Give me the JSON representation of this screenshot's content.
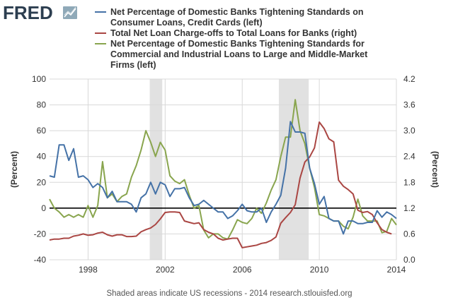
{
  "logo": {
    "text": "FRED",
    "icon": "trend-chart-icon"
  },
  "footer": "Shaded areas indicate US recessions - 2014 research.stlouisfed.org",
  "colors": {
    "series1": "#4572a7",
    "series2": "#aa4643",
    "series3": "#89a54e",
    "recession": "#e1e1e1",
    "grid": "#d8d8d8",
    "zero_line": "#000000",
    "logo": "#2c3e50"
  },
  "chart_data": {
    "type": "line",
    "xlim": [
      1996.0,
      2014.0
    ],
    "x_ticks": [
      1998,
      2002,
      2006,
      2010,
      2014
    ],
    "x_tick_labels": [
      "1998",
      "2002",
      "2006",
      "2010",
      "2014"
    ],
    "y_left": {
      "label": "(Percent)",
      "ylim": [
        -40,
        100
      ],
      "ticks": [
        -40,
        -20,
        0,
        20,
        40,
        60,
        80,
        100
      ],
      "tick_labels": [
        "-40",
        "-20",
        "0",
        "20",
        "40",
        "60",
        "80",
        "100"
      ]
    },
    "y_right": {
      "label": "(Percent)",
      "ylim": [
        0.0,
        4.2
      ],
      "ticks": [
        0.0,
        0.6,
        1.2,
        1.8,
        2.4,
        3.0,
        3.6,
        4.2
      ],
      "tick_labels": [
        "0.0",
        "0.6",
        "1.2",
        "1.8",
        "2.4",
        "3.0",
        "3.6",
        "4.2"
      ]
    },
    "grid": true,
    "zero_line": 0,
    "recessions": [
      [
        2001.2,
        2001.85
      ],
      [
        2007.9,
        2009.45
      ]
    ],
    "series": [
      {
        "name": "Net Percentage of Domestic Banks Tightening Standards on Consumer Loans, Credit Cards (left)",
        "axis": "left",
        "color": "#4572a7",
        "x": [
          1996.0,
          1996.25,
          1996.5,
          1996.75,
          1997.0,
          1997.25,
          1997.5,
          1997.75,
          1998.0,
          1998.25,
          1998.5,
          1998.75,
          1999.0,
          1999.25,
          1999.5,
          1999.75,
          2000.0,
          2000.25,
          2000.5,
          2000.75,
          2001.0,
          2001.25,
          2001.5,
          2001.75,
          2002.0,
          2002.25,
          2002.5,
          2002.75,
          2003.0,
          2003.25,
          2003.5,
          2003.75,
          2004.0,
          2004.25,
          2004.5,
          2004.75,
          2005.0,
          2005.25,
          2005.5,
          2005.75,
          2006.0,
          2006.25,
          2006.5,
          2006.75,
          2007.0,
          2007.25,
          2007.5,
          2007.75,
          2008.0,
          2008.25,
          2008.5,
          2008.75,
          2009.0,
          2009.25,
          2009.5,
          2009.75,
          2010.0,
          2010.25,
          2010.5,
          2010.75,
          2011.0,
          2011.25,
          2011.5,
          2011.75,
          2012.0,
          2012.25,
          2012.5,
          2012.75,
          2013.0,
          2013.25,
          2013.5,
          2013.75,
          2014.0
        ],
        "y": [
          25,
          24,
          49,
          49,
          37,
          46,
          24,
          25,
          22,
          16,
          19,
          16,
          8,
          13,
          5,
          5,
          5,
          3,
          -3,
          8,
          11,
          20,
          11,
          20,
          18,
          9,
          15,
          15,
          16,
          8,
          2,
          3,
          6,
          3,
          0,
          -3,
          -3,
          -8,
          -6,
          -2,
          3,
          -2,
          -3,
          -3,
          0,
          -11,
          -3,
          3,
          10,
          31,
          67,
          59,
          59,
          58,
          31,
          19,
          3,
          9,
          -8,
          -10,
          -10,
          -20,
          -10,
          -10,
          -12,
          -12,
          -11,
          -11,
          -2,
          -7,
          -3,
          -5,
          -8
        ]
      },
      {
        "name": "Total Net Loan Charge-offs to Total Loans for Banks (right)",
        "axis": "right",
        "color": "#aa4643",
        "x": [
          1996.0,
          1996.25,
          1996.5,
          1996.75,
          1997.0,
          1997.25,
          1997.5,
          1997.75,
          1998.0,
          1998.25,
          1998.5,
          1998.75,
          1999.0,
          1999.25,
          1999.5,
          1999.75,
          2000.0,
          2000.25,
          2000.5,
          2000.75,
          2001.0,
          2001.25,
          2001.5,
          2001.75,
          2002.0,
          2002.25,
          2002.5,
          2002.75,
          2003.0,
          2003.25,
          2003.5,
          2003.75,
          2004.0,
          2004.25,
          2004.5,
          2004.75,
          2005.0,
          2005.25,
          2005.5,
          2005.75,
          2006.0,
          2006.25,
          2006.5,
          2006.75,
          2007.0,
          2007.25,
          2007.5,
          2007.75,
          2008.0,
          2008.25,
          2008.5,
          2008.75,
          2009.0,
          2009.25,
          2009.5,
          2009.75,
          2010.0,
          2010.25,
          2010.5,
          2010.75,
          2011.0,
          2011.25,
          2011.5,
          2011.75,
          2012.0,
          2012.25,
          2012.5,
          2012.75,
          2013.0,
          2013.25,
          2013.5,
          2013.75
        ],
        "y": [
          0.46,
          0.48,
          0.48,
          0.5,
          0.5,
          0.55,
          0.57,
          0.6,
          0.57,
          0.58,
          0.62,
          0.64,
          0.58,
          0.55,
          0.58,
          0.58,
          0.54,
          0.54,
          0.55,
          0.65,
          0.7,
          0.74,
          0.82,
          0.95,
          1.1,
          1.11,
          1.11,
          1.1,
          0.9,
          0.87,
          0.84,
          0.86,
          0.7,
          0.64,
          0.6,
          0.5,
          0.46,
          0.48,
          0.5,
          0.5,
          0.28,
          0.3,
          0.32,
          0.34,
          0.38,
          0.4,
          0.45,
          0.53,
          0.85,
          0.98,
          1.1,
          1.28,
          1.9,
          2.27,
          2.39,
          2.6,
          3.2,
          3.05,
          2.81,
          2.74,
          1.85,
          1.71,
          1.63,
          1.53,
          1.15,
          1.1,
          1.12,
          1.05,
          0.86,
          0.7,
          0.64,
          0.6
        ]
      },
      {
        "name": "Net Percentage of Domestic Banks Tightening Standards for Commercial and Industrial Loans to Large and Middle-Market Firms (left)",
        "axis": "left",
        "color": "#89a54e",
        "x": [
          1996.0,
          1996.25,
          1996.5,
          1996.75,
          1997.0,
          1997.25,
          1997.5,
          1997.75,
          1998.0,
          1998.25,
          1998.5,
          1998.75,
          1999.0,
          1999.25,
          1999.5,
          1999.75,
          2000.0,
          2000.25,
          2000.5,
          2000.75,
          2001.0,
          2001.25,
          2001.5,
          2001.75,
          2002.0,
          2002.25,
          2002.5,
          2002.75,
          2003.0,
          2003.25,
          2003.5,
          2003.75,
          2004.0,
          2004.25,
          2004.5,
          2004.75,
          2005.0,
          2005.25,
          2005.5,
          2005.75,
          2006.0,
          2006.25,
          2006.5,
          2006.75,
          2007.0,
          2007.25,
          2007.5,
          2007.75,
          2008.0,
          2008.25,
          2008.5,
          2008.75,
          2009.0,
          2009.25,
          2009.5,
          2009.75,
          2010.0,
          2010.25,
          2010.5,
          2010.75,
          2011.0,
          2011.25,
          2011.5,
          2011.75,
          2012.0,
          2012.25,
          2012.5,
          2012.75,
          2013.0,
          2013.25,
          2013.5,
          2013.75,
          2014.0
        ],
        "y": [
          7,
          0,
          -3,
          -7,
          -5,
          -7,
          -5,
          -7,
          2,
          -7,
          2,
          36,
          8,
          11,
          5,
          9,
          11,
          24,
          33,
          45,
          60,
          51,
          40,
          51,
          45,
          25,
          21,
          19,
          22,
          10,
          0,
          2,
          -17,
          -23,
          -20,
          -20,
          -23,
          -24,
          -17,
          -9,
          -11,
          -12,
          -8,
          0,
          -4,
          4,
          14,
          22,
          40,
          55,
          55,
          84,
          60,
          50,
          31,
          16,
          -5,
          -6,
          -8,
          -10,
          -10,
          -14,
          -16,
          -7,
          7,
          -6,
          -10,
          -10,
          -10,
          -19,
          -18,
          -8,
          -13
        ]
      }
    ]
  }
}
